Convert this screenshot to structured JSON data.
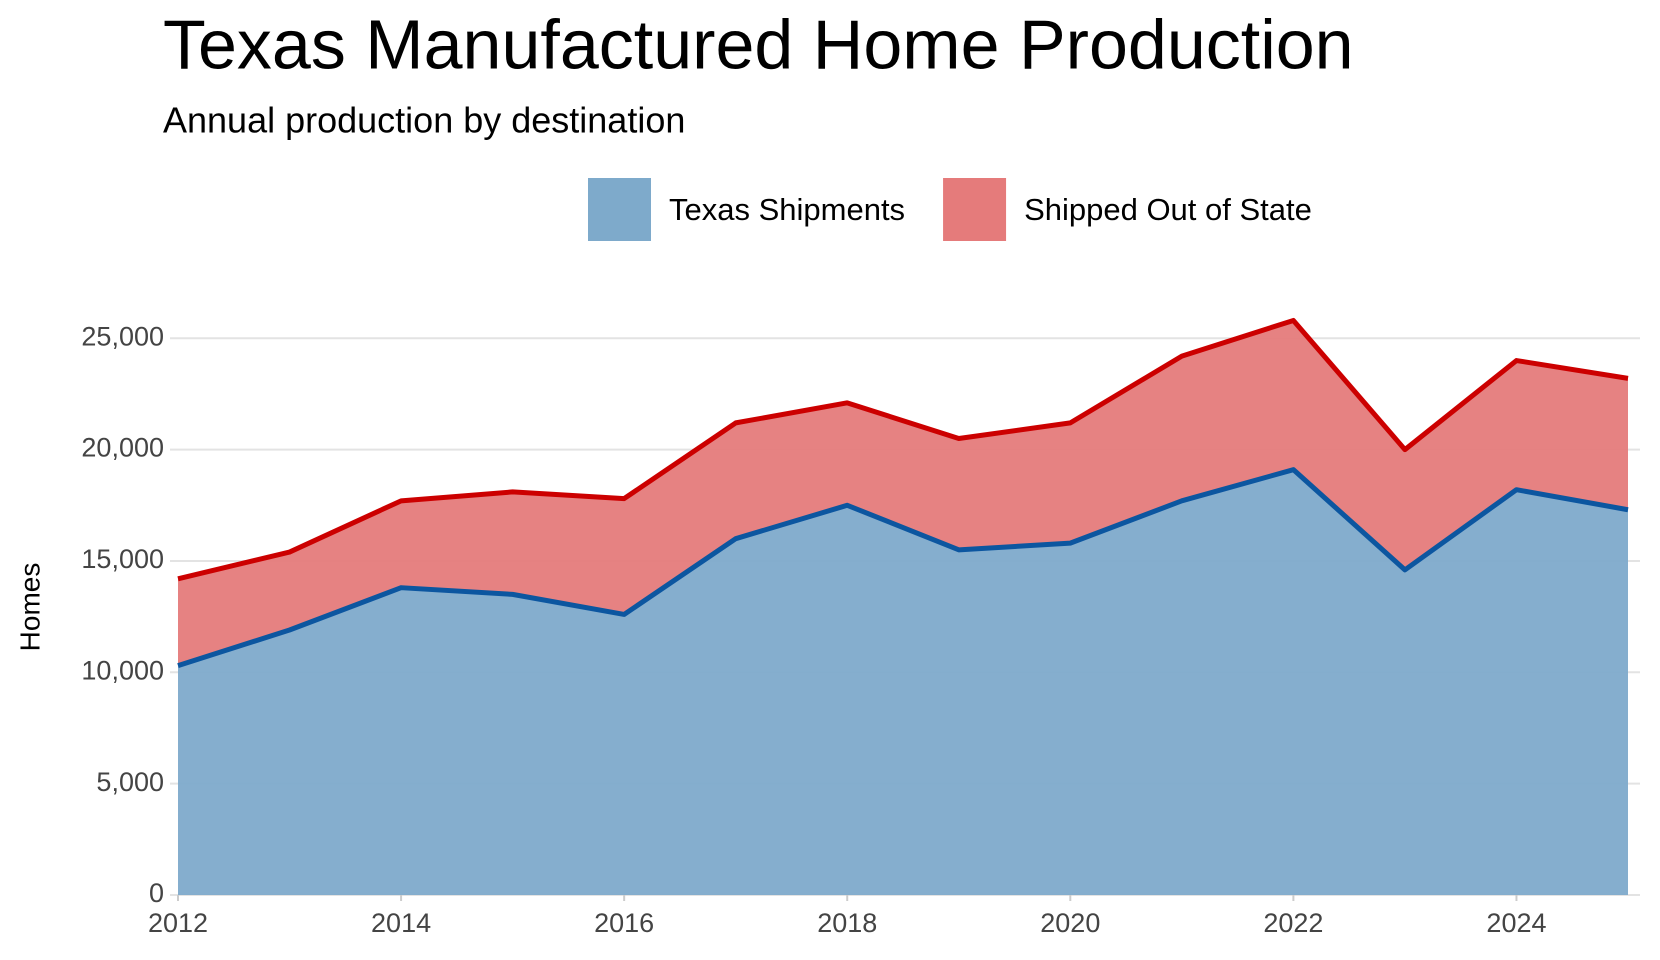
{
  "chart_data": {
    "type": "stacked_area",
    "title": "Texas Manufactured Home Production",
    "subtitle": "Annual production by destination",
    "y_label": "Homes",
    "x": [
      2012,
      2013,
      2014,
      2015,
      2016,
      2017,
      2018,
      2019,
      2020,
      2021,
      2022,
      2023,
      2024,
      2025
    ],
    "series": [
      {
        "name": "Texas Shipments",
        "color": "#7eaacb",
        "line_color": "#0c56a0",
        "values": [
          10300,
          11900,
          13800,
          13500,
          12600,
          16000,
          17500,
          15500,
          15800,
          17700,
          19100,
          14600,
          18200,
          17300
        ]
      },
      {
        "name": "Shipped Out of State",
        "color": "#e57b7b",
        "line_color": "#cc0000",
        "values": [
          3900,
          3500,
          3900,
          4600,
          5200,
          5200,
          4600,
          5000,
          5400,
          6500,
          6700,
          5400,
          5800,
          5900
        ]
      }
    ],
    "xlim": [
      2012,
      2025
    ],
    "xticks": [
      2012,
      2014,
      2016,
      2018,
      2020,
      2022,
      2024
    ],
    "ylim": [
      0,
      26000
    ],
    "yticks": [
      0,
      {
        "value": 5000,
        "label": "5,000"
      },
      {
        "value": 10000,
        "label": "10,000"
      },
      {
        "value": 15000,
        "label": "15,000"
      },
      {
        "value": 20000,
        "label": "20,000"
      },
      {
        "value": 25000,
        "label": "25,000"
      }
    ],
    "grid": true,
    "legend": "top"
  }
}
